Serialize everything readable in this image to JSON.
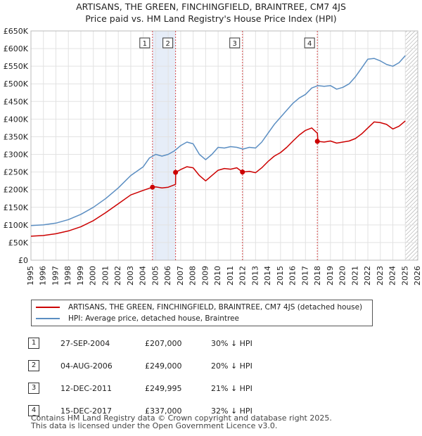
{
  "title_line1": "ARTISANS, THE GREEN, FINCHINGFIELD, BRAINTREE, CM7 4JS",
  "title_line2": "Price paid vs. HM Land Registry's House Price Index (HPI)",
  "chart_data": {
    "type": "line",
    "xlim": [
      1995,
      2026
    ],
    "ylim": [
      0,
      650000
    ],
    "yticks": [
      0,
      50000,
      100000,
      150000,
      200000,
      250000,
      300000,
      350000,
      400000,
      450000,
      500000,
      550000,
      600000,
      650000
    ],
    "ytick_labels": [
      "£0",
      "£50K",
      "£100K",
      "£150K",
      "£200K",
      "£250K",
      "£300K",
      "£350K",
      "£400K",
      "£450K",
      "£500K",
      "£550K",
      "£600K",
      "£650K"
    ],
    "xticks": [
      1995,
      1996,
      1997,
      1998,
      1999,
      2000,
      2001,
      2002,
      2003,
      2004,
      2005,
      2006,
      2007,
      2008,
      2009,
      2010,
      2011,
      2012,
      2013,
      2014,
      2015,
      2016,
      2017,
      2018,
      2019,
      2020,
      2021,
      2022,
      2023,
      2024,
      2025,
      2026
    ],
    "xtick_labels": [
      "1995",
      "1996",
      "1997",
      "1998",
      "1999",
      "2000",
      "2001",
      "2002",
      "2003",
      "2004",
      "2005",
      "2006",
      "2007",
      "2008",
      "2009",
      "2010",
      "2011",
      "2012",
      "2013",
      "2014",
      "2015",
      "2016",
      "2017",
      "2018",
      "2019",
      "2020",
      "2021",
      "2022",
      "2023",
      "2024",
      "2025",
      "2026"
    ],
    "grid": true,
    "series": [
      {
        "name": "ARTISANS, THE GREEN, FINCHINGFIELD, BRAINTREE, CM7 4JS (detached house)",
        "color": "#cc0000",
        "x": [
          1995.0,
          1996.0,
          1997.0,
          1998.0,
          1999.0,
          2000.0,
          2001.0,
          2002.0,
          2003.0,
          2004.0,
          2004.74,
          2005.0,
          2005.5,
          2006.0,
          2006.59,
          2006.6,
          2007.0,
          2007.5,
          2008.0,
          2008.5,
          2009.0,
          2009.5,
          2010.0,
          2010.5,
          2011.0,
          2011.5,
          2011.95,
          2012.0,
          2012.5,
          2013.0,
          2013.5,
          2014.0,
          2014.5,
          2015.0,
          2015.5,
          2016.0,
          2016.5,
          2017.0,
          2017.5,
          2017.95,
          2018.0,
          2018.5,
          2019.0,
          2019.5,
          2020.0,
          2020.5,
          2021.0,
          2021.5,
          2022.0,
          2022.5,
          2023.0,
          2023.5,
          2024.0,
          2024.5,
          2025.0
        ],
        "y": [
          68000,
          70000,
          75000,
          83000,
          95000,
          112000,
          135000,
          160000,
          185000,
          198000,
          207000,
          208000,
          205000,
          207000,
          215000,
          249000,
          257000,
          265000,
          262000,
          240000,
          225000,
          240000,
          255000,
          260000,
          258000,
          262000,
          249995,
          250000,
          252000,
          248000,
          262000,
          280000,
          295000,
          305000,
          320000,
          338000,
          355000,
          368000,
          375000,
          360000,
          337000,
          335000,
          338000,
          332000,
          335000,
          338000,
          345000,
          358000,
          375000,
          392000,
          390000,
          385000,
          372000,
          380000,
          395000
        ]
      },
      {
        "name": "HPI: Average price, detached house, Braintree",
        "color": "#5b8ec2",
        "x": [
          1995.0,
          1996.0,
          1997.0,
          1998.0,
          1999.0,
          2000.0,
          2001.0,
          2002.0,
          2003.0,
          2004.0,
          2004.5,
          2005.0,
          2005.5,
          2006.0,
          2006.5,
          2007.0,
          2007.5,
          2008.0,
          2008.5,
          2009.0,
          2009.5,
          2010.0,
          2010.5,
          2011.0,
          2011.5,
          2012.0,
          2012.5,
          2013.0,
          2013.5,
          2014.0,
          2014.5,
          2015.0,
          2015.5,
          2016.0,
          2016.5,
          2017.0,
          2017.5,
          2018.0,
          2018.5,
          2019.0,
          2019.5,
          2020.0,
          2020.5,
          2021.0,
          2021.5,
          2022.0,
          2022.5,
          2023.0,
          2023.5,
          2024.0,
          2024.5,
          2025.0
        ],
        "y": [
          98000,
          100000,
          105000,
          115000,
          130000,
          150000,
          175000,
          205000,
          240000,
          265000,
          290000,
          300000,
          295000,
          300000,
          310000,
          325000,
          335000,
          330000,
          300000,
          285000,
          300000,
          320000,
          318000,
          322000,
          320000,
          315000,
          320000,
          318000,
          335000,
          360000,
          385000,
          405000,
          425000,
          445000,
          460000,
          470000,
          488000,
          495000,
          493000,
          495000,
          485000,
          490000,
          500000,
          520000,
          545000,
          570000,
          572000,
          565000,
          555000,
          550000,
          560000,
          580000
        ]
      }
    ],
    "sales": [
      {
        "label": "1",
        "x": 2004.74,
        "y": 207000
      },
      {
        "label": "2",
        "x": 2006.59,
        "y": 249000
      },
      {
        "label": "3",
        "x": 2011.95,
        "y": 249995
      },
      {
        "label": "4",
        "x": 2017.95,
        "y": 337000
      }
    ],
    "shaded_range": [
      2004.74,
      2006.59
    ],
    "hatch_from": 2025.0
  },
  "legend": {
    "property": "ARTISANS, THE GREEN, FINCHINGFIELD, BRAINTREE, CM7 4JS (detached house)",
    "hpi": "HPI: Average price, detached house, Braintree"
  },
  "transactions": [
    {
      "num": "1",
      "date": "27-SEP-2004",
      "price": "£207,000",
      "delta": "30% ↓ HPI"
    },
    {
      "num": "2",
      "date": "04-AUG-2006",
      "price": "£249,000",
      "delta": "20% ↓ HPI"
    },
    {
      "num": "3",
      "date": "12-DEC-2011",
      "price": "£249,995",
      "delta": "21% ↓ HPI"
    },
    {
      "num": "4",
      "date": "15-DEC-2017",
      "price": "£337,000",
      "delta": "32% ↓ HPI"
    }
  ],
  "footer": {
    "line1": "Contains HM Land Registry data © Crown copyright and database right 2025.",
    "line2": "This data is licensed under the Open Government Licence v3.0."
  }
}
